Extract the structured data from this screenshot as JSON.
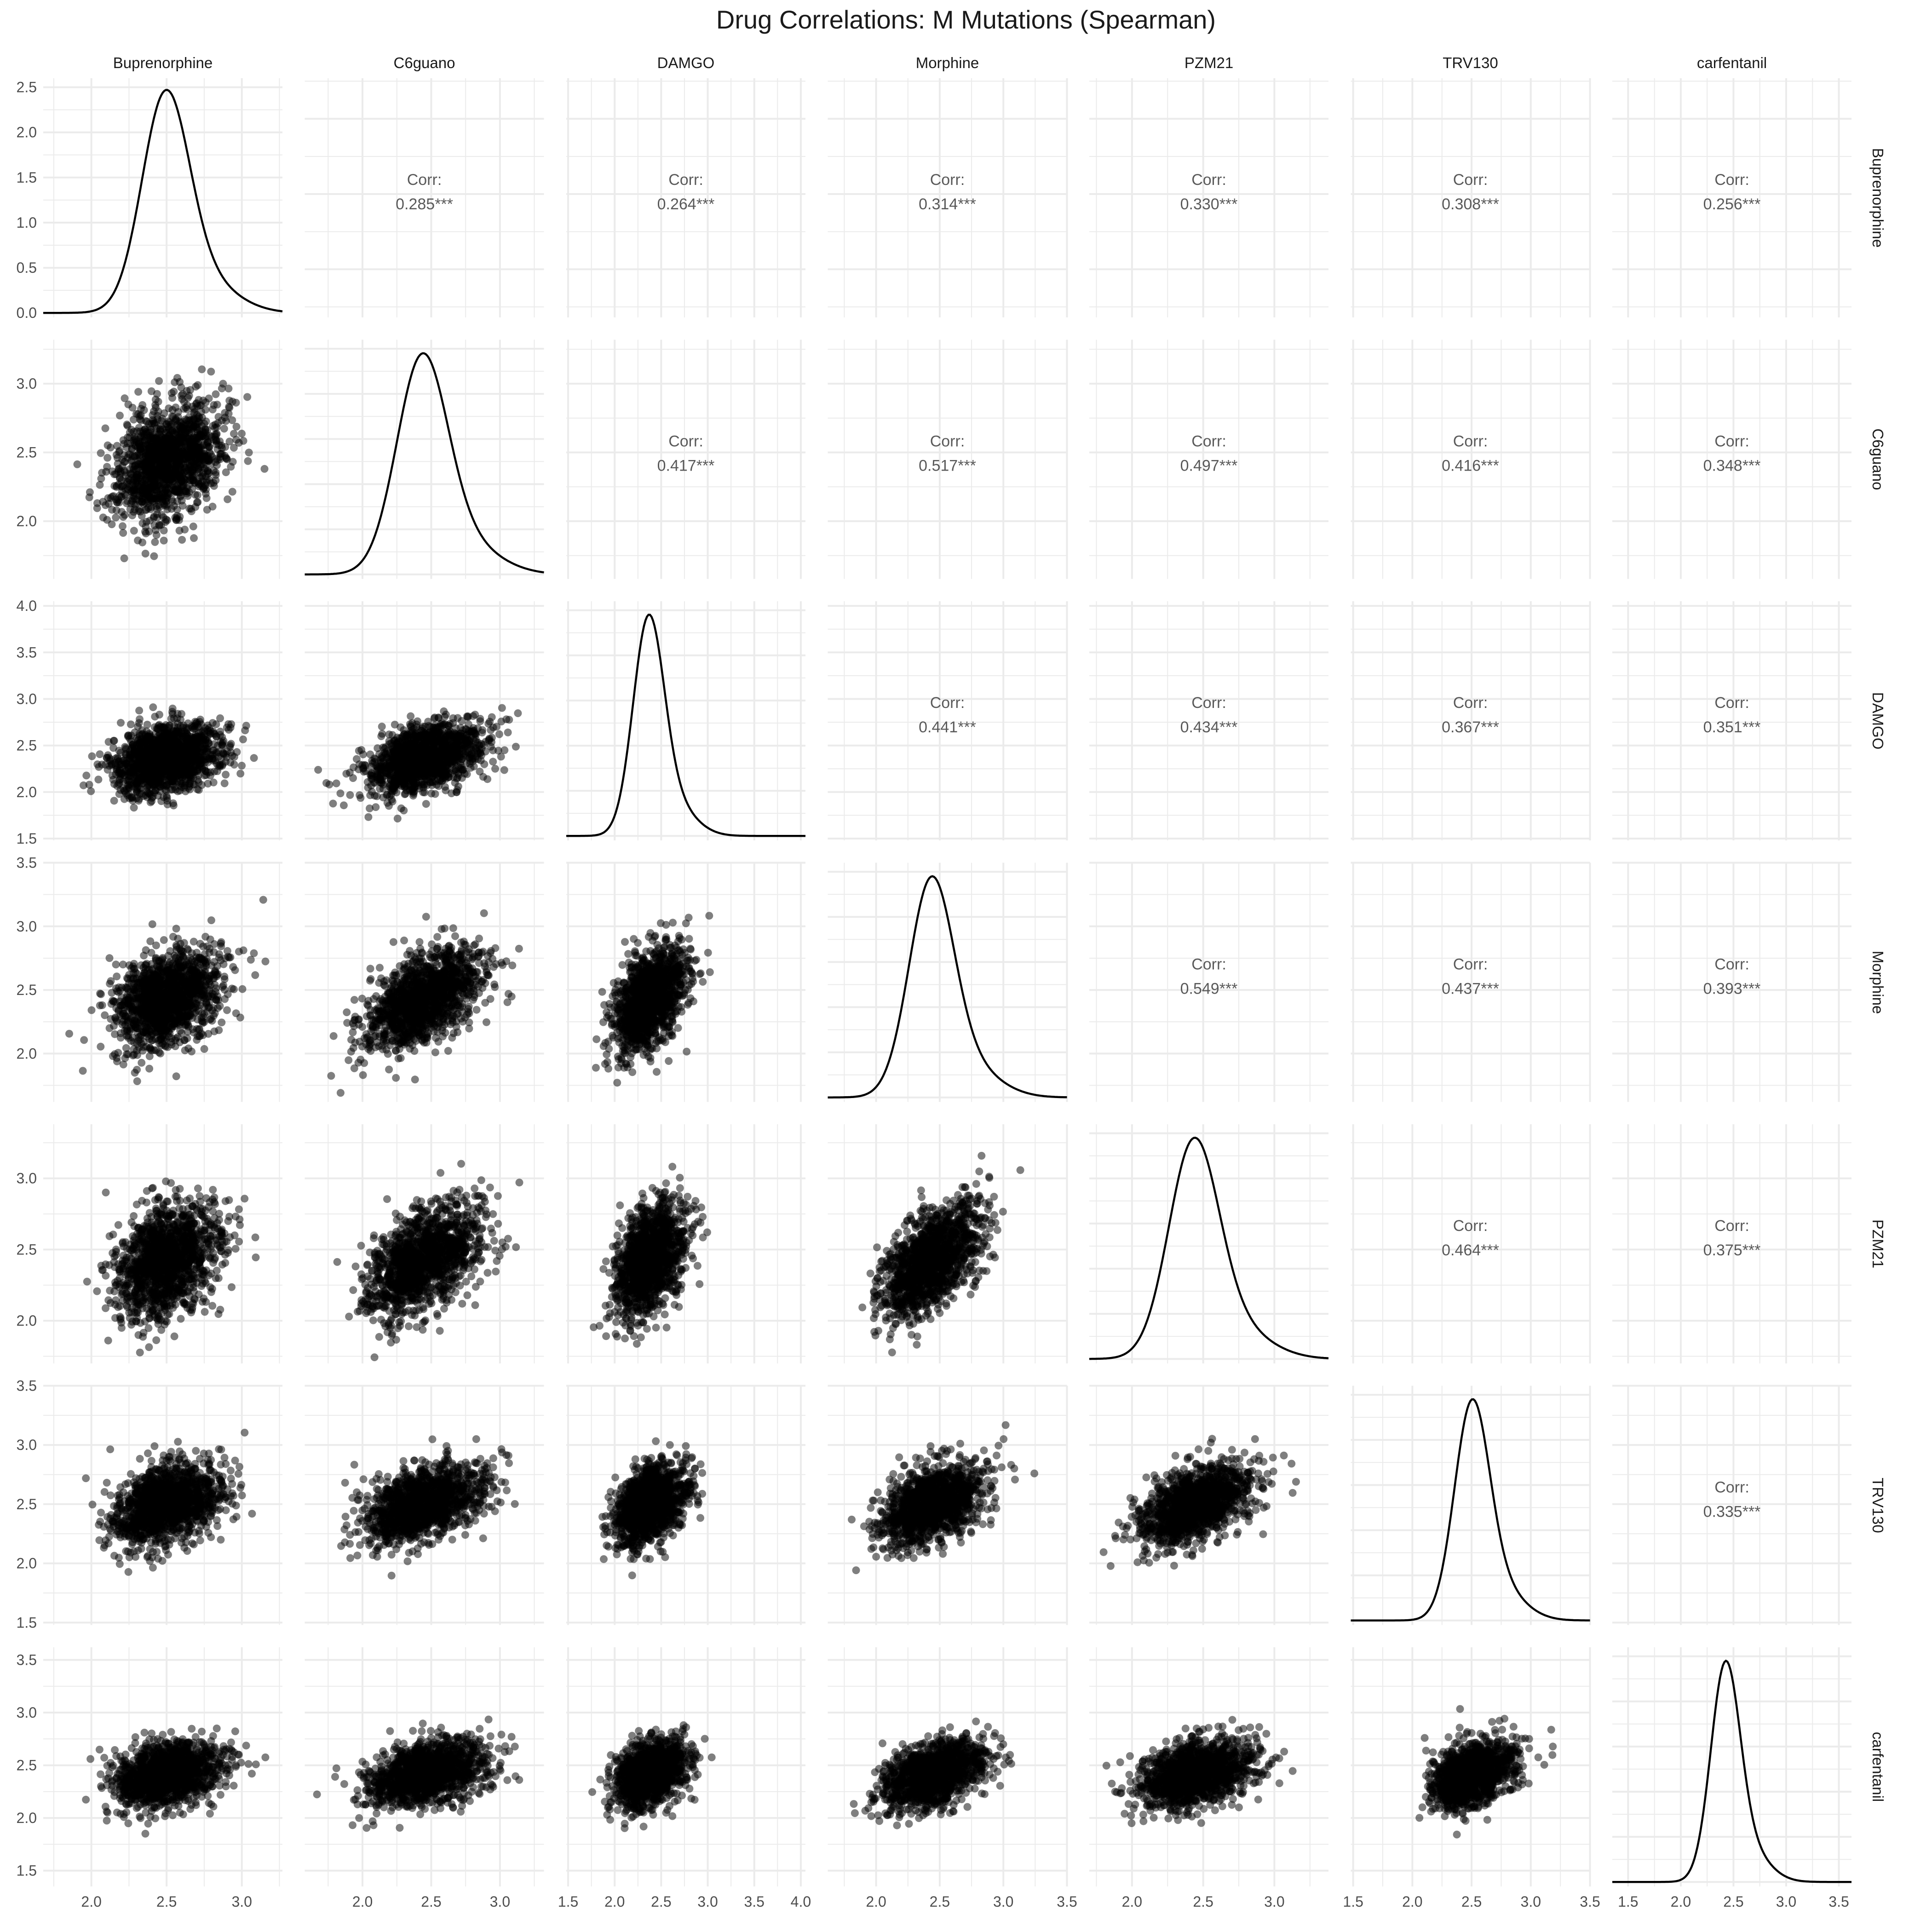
{
  "chart_data": {
    "type": "scatter",
    "title": "Drug Correlations: M Mutations (Spearman)",
    "method": "Spearman",
    "variables": [
      "Buprenorphine",
      "C6guano",
      "DAMGO",
      "Morphine",
      "PZM21",
      "TRV130",
      "carfentanil"
    ],
    "corr_label": "Corr:",
    "correlations": [
      {
        "row": "Buprenorphine",
        "col": "C6guano",
        "value": "0.285***"
      },
      {
        "row": "Buprenorphine",
        "col": "DAMGO",
        "value": "0.264***"
      },
      {
        "row": "Buprenorphine",
        "col": "Morphine",
        "value": "0.314***"
      },
      {
        "row": "Buprenorphine",
        "col": "PZM21",
        "value": "0.330***"
      },
      {
        "row": "Buprenorphine",
        "col": "TRV130",
        "value": "0.308***"
      },
      {
        "row": "Buprenorphine",
        "col": "carfentanil",
        "value": "0.256***"
      },
      {
        "row": "C6guano",
        "col": "DAMGO",
        "value": "0.417***"
      },
      {
        "row": "C6guano",
        "col": "Morphine",
        "value": "0.517***"
      },
      {
        "row": "C6guano",
        "col": "PZM21",
        "value": "0.497***"
      },
      {
        "row": "C6guano",
        "col": "TRV130",
        "value": "0.416***"
      },
      {
        "row": "C6guano",
        "col": "carfentanil",
        "value": "0.348***"
      },
      {
        "row": "DAMGO",
        "col": "Morphine",
        "value": "0.441***"
      },
      {
        "row": "DAMGO",
        "col": "PZM21",
        "value": "0.434***"
      },
      {
        "row": "DAMGO",
        "col": "TRV130",
        "value": "0.367***"
      },
      {
        "row": "DAMGO",
        "col": "carfentanil",
        "value": "0.351***"
      },
      {
        "row": "Morphine",
        "col": "PZM21",
        "value": "0.549***"
      },
      {
        "row": "Morphine",
        "col": "TRV130",
        "value": "0.437***"
      },
      {
        "row": "Morphine",
        "col": "carfentanil",
        "value": "0.393***"
      },
      {
        "row": "PZM21",
        "col": "TRV130",
        "value": "0.464***"
      },
      {
        "row": "PZM21",
        "col": "carfentanil",
        "value": "0.375***"
      },
      {
        "row": "TRV130",
        "col": "carfentanil",
        "value": "0.335***"
      }
    ],
    "axes": {
      "Buprenorphine": {
        "range": [
          1.68,
          3.27
        ],
        "ticks": [
          2.0,
          2.5,
          3.0
        ],
        "tick_labels": [
          "2.0",
          "2.5",
          "3.0"
        ]
      },
      "C6guano": {
        "range": [
          1.58,
          3.32
        ],
        "ticks": [
          2.0,
          2.5,
          3.0
        ],
        "tick_labels": [
          "2.0",
          "2.5",
          "3.0"
        ]
      },
      "DAMGO": {
        "range": [
          1.48,
          4.05
        ],
        "ticks": [
          1.5,
          2.0,
          2.5,
          3.0,
          3.5,
          4.0
        ],
        "tick_labels": [
          "1.5",
          "2.0",
          "2.5",
          "3.0",
          "3.5",
          "4.0"
        ]
      },
      "Morphine": {
        "range": [
          1.62,
          3.5
        ],
        "ticks": [
          2.0,
          2.5,
          3.0,
          3.5
        ],
        "tick_labels": [
          "2.0",
          "2.5",
          "3.0",
          "3.5"
        ]
      },
      "PZM21": {
        "range": [
          1.7,
          3.38
        ],
        "ticks": [
          2.0,
          2.5,
          3.0
        ],
        "tick_labels": [
          "2.0",
          "2.5",
          "3.0"
        ]
      },
      "TRV130": {
        "range": [
          1.48,
          3.5
        ],
        "ticks": [
          1.5,
          2.0,
          2.5,
          3.0,
          3.5
        ],
        "tick_labels": [
          "1.5",
          "2.0",
          "2.5",
          "3.0",
          "3.5"
        ]
      },
      "carfentanil": {
        "range": [
          1.35,
          3.62
        ],
        "ticks": [
          1.5,
          2.0,
          2.5,
          3.0,
          3.5
        ],
        "tick_labels": [
          "1.5",
          "2.0",
          "2.5",
          "3.0",
          "3.5"
        ]
      }
    },
    "density_axis": {
      "range": [
        -0.05,
        2.6
      ],
      "ticks": [
        0.0,
        0.5,
        1.0,
        1.5,
        2.0,
        2.5
      ],
      "tick_labels": [
        "0.0",
        "0.5",
        "1.0",
        "1.5",
        "2.0",
        "2.5"
      ]
    },
    "distributions": {
      "Buprenorphine": {
        "mean": 2.49,
        "sd": 0.17
      },
      "C6guano": {
        "mean": 2.43,
        "sd": 0.2
      },
      "DAMGO": {
        "mean": 2.36,
        "sd": 0.18
      },
      "Morphine": {
        "mean": 2.43,
        "sd": 0.19
      },
      "PZM21": {
        "mean": 2.43,
        "sd": 0.19
      },
      "TRV130": {
        "mean": 2.5,
        "sd": 0.16
      },
      "carfentanil": {
        "mean": 2.42,
        "sd": 0.15
      }
    },
    "grid": true,
    "legend": "none",
    "point_color": "#000000",
    "point_alpha": 0.5,
    "line_color": "#000000",
    "text_color": "#1a1a1a",
    "corr_text_color": "#595959",
    "grid_color": "#ebebeb"
  }
}
